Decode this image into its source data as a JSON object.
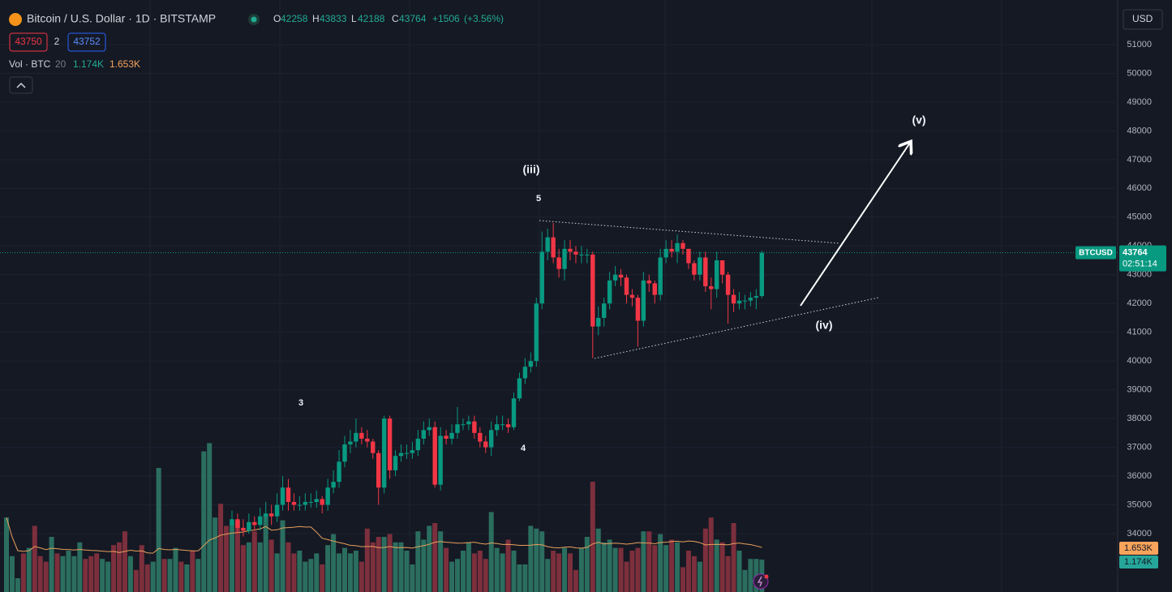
{
  "header": {
    "symbol": "Bitcoin / U.S. Dollar · 1D · BITSTAMP",
    "ohlc": [
      {
        "label": "O",
        "value": 42258
      },
      {
        "label": "H",
        "value": 43833
      },
      {
        "label": "L",
        "value": 42188
      },
      {
        "label": "C",
        "value": 43764
      }
    ],
    "change": "+1506",
    "change_pct": "(+3.56%)",
    "bid": 43750,
    "spread": 2,
    "ask": 43752,
    "volume_title": "Vol · BTC",
    "volume_length": 20,
    "currency": "USD"
  },
  "chart_data": {
    "type": "candlestick",
    "up_color": "#089981",
    "down_color": "#f23645",
    "ylim": [
      31970,
      52550
    ],
    "yticks": [
      34000,
      35000,
      36000,
      37000,
      38000,
      39000,
      40000,
      41000,
      42000,
      43000,
      44000,
      45000,
      46000,
      47000,
      48000,
      49000,
      50000,
      51000
    ],
    "grid": true,
    "open": [
      null,
      null,
      null,
      null,
      null,
      null,
      null,
      null,
      null,
      null,
      null,
      null,
      null,
      null,
      null,
      null,
      null,
      null,
      null,
      null,
      null,
      null,
      null,
      null,
      null,
      null,
      null,
      null,
      null,
      null,
      null,
      null,
      null,
      null,
      null,
      null,
      null,
      null,
      null,
      null,
      34300,
      34500,
      34200,
      34100,
      34400,
      34300,
      34600,
      34700,
      34600,
      35000,
      35600,
      35100,
      35000,
      35000,
      35100,
      35100,
      35200,
      35000,
      35600,
      35800,
      36500,
      37100,
      37200,
      37500,
      37300,
      37200,
      36800,
      35600,
      38000,
      36200,
      36700,
      36800,
      36800,
      36900,
      37300,
      37600,
      37700,
      35700,
      37400,
      37300,
      37500,
      37800,
      37800,
      37900,
      37500,
      37200,
      37000,
      37600,
      37800,
      37800,
      37700,
      38700,
      39400,
      39800,
      40000,
      42000,
      43800,
      44300,
      43600,
      43200,
      43900,
      43800,
      43700,
      43700,
      43700,
      41200,
      41500,
      42000,
      42800,
      43000,
      42900,
      42300,
      42200,
      41400,
      42800,
      42700,
      42300,
      43600,
      43900,
      43800,
      44100,
      43900,
      43400,
      43000,
      43600,
      42600,
      42500,
      43500,
      43000,
      42300,
      42000,
      42100,
      42100,
      42200,
      42258
    ],
    "high": [
      null,
      null,
      null,
      null,
      null,
      null,
      null,
      null,
      null,
      null,
      null,
      null,
      null,
      null,
      null,
      null,
      null,
      null,
      null,
      null,
      null,
      null,
      null,
      null,
      null,
      null,
      null,
      null,
      null,
      null,
      null,
      null,
      null,
      null,
      null,
      null,
      null,
      null,
      null,
      null,
      34800,
      34700,
      34500,
      34700,
      34600,
      34900,
      35100,
      35000,
      35400,
      36000,
      35900,
      35400,
      35300,
      35400,
      35400,
      35500,
      35300,
      35900,
      36200,
      36900,
      37400,
      37600,
      38000,
      37700,
      37600,
      37300,
      36900,
      38100,
      38100,
      36900,
      37100,
      37100,
      37200,
      37600,
      37900,
      38000,
      37900,
      37700,
      37600,
      37800,
      38400,
      38000,
      38100,
      38100,
      37700,
      37400,
      37900,
      38100,
      38100,
      38000,
      38900,
      39600,
      40100,
      40300,
      42200,
      44500,
      44600,
      44800,
      43900,
      44200,
      44200,
      44000,
      44000,
      43900,
      43800,
      41900,
      42200,
      43100,
      43300,
      43200,
      43000,
      42500,
      42300,
      43100,
      43000,
      42800,
      43900,
      44200,
      44200,
      44400,
      44200,
      43800,
      43500,
      43800,
      43800,
      42900,
      43800,
      43400,
      43100,
      42500,
      42400,
      42300,
      42400,
      42500,
      43833
    ],
    "low": [
      null,
      null,
      null,
      null,
      null,
      null,
      null,
      null,
      null,
      null,
      null,
      null,
      null,
      null,
      null,
      null,
      null,
      null,
      null,
      null,
      null,
      null,
      null,
      null,
      null,
      null,
      null,
      null,
      null,
      null,
      null,
      null,
      null,
      null,
      null,
      null,
      null,
      null,
      null,
      null,
      34100,
      34000,
      33900,
      34000,
      34100,
      34100,
      34400,
      34300,
      34400,
      34800,
      34800,
      34800,
      34800,
      34800,
      34900,
      34900,
      34700,
      34800,
      35400,
      35600,
      36300,
      36800,
      37000,
      37100,
      37000,
      36600,
      35000,
      35400,
      35900,
      36000,
      36500,
      36600,
      36600,
      36700,
      37100,
      37400,
      35600,
      35500,
      37100,
      37100,
      37300,
      37600,
      37600,
      37300,
      37000,
      36800,
      36700,
      37400,
      37600,
      37500,
      37600,
      38600,
      39200,
      39600,
      39800,
      41800,
      43500,
      43400,
      42900,
      42800,
      43500,
      43400,
      43400,
      43400,
      40100,
      40900,
      41200,
      41800,
      42600,
      42600,
      42000,
      41900,
      40500,
      41200,
      42400,
      42000,
      42100,
      43400,
      43600,
      43400,
      43700,
      43200,
      42800,
      42800,
      42400,
      41800,
      42200,
      42700,
      41300,
      41700,
      41800,
      41800,
      41900,
      41800,
      42188
    ],
    "close": [
      null,
      null,
      null,
      null,
      null,
      null,
      null,
      null,
      null,
      null,
      null,
      null,
      null,
      null,
      null,
      null,
      null,
      null,
      null,
      null,
      null,
      null,
      null,
      null,
      null,
      null,
      null,
      null,
      null,
      null,
      null,
      null,
      null,
      null,
      null,
      null,
      null,
      null,
      null,
      null,
      34500,
      34200,
      34100,
      34400,
      34300,
      34600,
      34700,
      34600,
      35000,
      35600,
      35100,
      35000,
      35000,
      35100,
      35100,
      35200,
      35000,
      35600,
      35800,
      36500,
      37100,
      37200,
      37500,
      37300,
      37200,
      36800,
      35600,
      38000,
      36200,
      36700,
      36800,
      36800,
      36900,
      37300,
      37600,
      37700,
      35700,
      37400,
      37300,
      37500,
      37800,
      37800,
      37900,
      37500,
      37200,
      37000,
      37600,
      37800,
      37800,
      37700,
      38700,
      39400,
      39800,
      40000,
      42000,
      43800,
      44300,
      43600,
      43200,
      43900,
      43800,
      43700,
      43700,
      43700,
      41200,
      41500,
      42000,
      42800,
      43000,
      42900,
      42300,
      42200,
      41400,
      42800,
      42700,
      42300,
      43600,
      43900,
      43800,
      44100,
      43900,
      43400,
      43000,
      43600,
      42600,
      42500,
      43500,
      43000,
      42300,
      42000,
      42100,
      42100,
      42200,
      42258,
      43764
    ],
    "volume": {
      "up_color": "#2b6e5f",
      "down_color": "#7c2f3c",
      "ma_color": "#e8a05c",
      "values": [
        2.7,
        1.3,
        0.5,
        1.4,
        1.6,
        2.4,
        1.3,
        1.1,
        2.0,
        1.4,
        1.3,
        1.5,
        1.3,
        1.8,
        1.2,
        1.3,
        1.4,
        1.2,
        1.1,
        1.7,
        1.8,
        2.2,
        1.3,
        0.8,
        1.7,
        1.0,
        1.1,
        4.5,
        1.2,
        1.2,
        1.6,
        1.1,
        1.0,
        1.5,
        1.2,
        5.1,
        5.4,
        2.7,
        3.2,
        2.4,
        2.5,
        2.6,
        1.7,
        1.8,
        2.2,
        1.8,
        2.8,
        1.9,
        1.4,
        2.6,
        1.8,
        1.4,
        1.5,
        1.1,
        1.2,
        1.4,
        1.0,
        1.7,
        2.1,
        1.4,
        1.6,
        1.4,
        1.5,
        1.1,
        2.3,
        1.8,
        2.0,
        2.0,
        2.1,
        1.8,
        1.8,
        1.5,
        1.0,
        2.2,
        1.9,
        2.4,
        2.5,
        2.2,
        1.6,
        1.1,
        1.2,
        1.5,
        1.8,
        1.4,
        1.5,
        1.2,
        2.9,
        1.6,
        1.4,
        1.9,
        1.5,
        1.0,
        1.0,
        2.4,
        2.3,
        2.2,
        1.2,
        1.5,
        1.4,
        1.6,
        1.4,
        0.8,
        1.6,
        2.0,
        4.0,
        2.3,
        1.8,
        1.9,
        1.6,
        1.6,
        1.1,
        1.5,
        1.6,
        2.2,
        2.2,
        1.7,
        2.1,
        1.7,
        1.9,
        1.8,
        0.9,
        1.5,
        1.3,
        1.1,
        2.3,
        2.7,
        1.9,
        1.8,
        1.3,
        2.5,
        1.5,
        0.8,
        1.2,
        1.2,
        1.174
      ],
      "directions": [
        "up",
        "up",
        "up",
        "down",
        "up",
        "down",
        "down",
        "down",
        "up",
        "down",
        "up",
        "up",
        "up",
        "up",
        "down",
        "down",
        "down",
        "up",
        "up",
        "down",
        "down",
        "down",
        "up",
        "down",
        "down",
        "down",
        "up",
        "up",
        "down",
        "up",
        "up",
        "down",
        "up",
        "down",
        "up",
        "up",
        "up",
        "up",
        "down",
        "down",
        "up",
        "down",
        "down",
        "up",
        "down",
        "up",
        "up",
        "down",
        "up",
        "up",
        "down",
        "down",
        "up",
        "up",
        "up",
        "up",
        "down",
        "up",
        "up",
        "up",
        "up",
        "up",
        "up",
        "down",
        "down",
        "down",
        "down",
        "up",
        "down",
        "up",
        "up",
        "up",
        "up",
        "up",
        "up",
        "up",
        "down",
        "up",
        "down",
        "up",
        "up",
        "up",
        "up",
        "down",
        "down",
        "down",
        "up",
        "up",
        "up",
        "down",
        "up",
        "up",
        "up",
        "up",
        "up",
        "up",
        "up",
        "down",
        "down",
        "up",
        "down",
        "down",
        "up",
        "up",
        "down",
        "up",
        "up",
        "up",
        "up",
        "down",
        "down",
        "down",
        "down",
        "up",
        "down",
        "down",
        "up",
        "up",
        "down",
        "up",
        "down",
        "down",
        "down",
        "up",
        "down",
        "down",
        "up",
        "down",
        "down",
        "down",
        "up",
        "up",
        "up",
        "up",
        "up"
      ],
      "last_label": "1.174K",
      "ma_label": "1.653K"
    },
    "last_price": {
      "name": "BTCUSD",
      "value": 43764,
      "countdown": "02:51:14"
    },
    "annotations": [
      "(iii)",
      "5",
      "3",
      "4",
      "(iv)",
      "(v)"
    ]
  }
}
